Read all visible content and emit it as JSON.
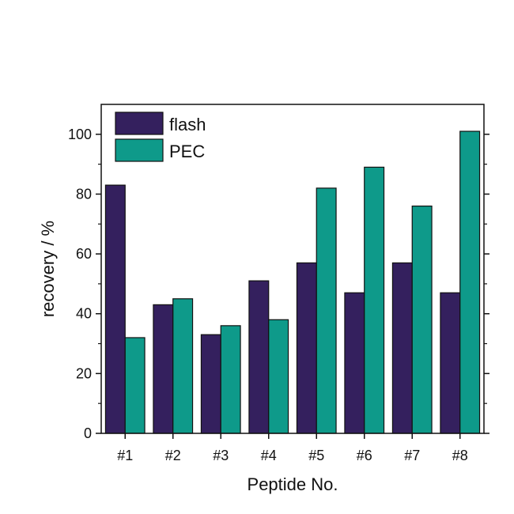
{
  "chart_data": {
    "type": "bar",
    "title": "",
    "xlabel": "Peptide No.",
    "ylabel": "recovery / %",
    "categories": [
      "#1",
      "#2",
      "#3",
      "#4",
      "#5",
      "#6",
      "#7",
      "#8"
    ],
    "series": [
      {
        "name": "flash",
        "color": "#34205e",
        "values": [
          83,
          43,
          33,
          51,
          57,
          47,
          57,
          47
        ]
      },
      {
        "name": "PEC",
        "color": "#0e9a8a",
        "values": [
          32,
          45,
          36,
          38,
          82,
          89,
          76,
          101
        ]
      }
    ],
    "ylim": [
      0,
      110
    ],
    "yticks": [
      0,
      20,
      40,
      60,
      80,
      100
    ],
    "grid": false,
    "legend": "top-left"
  }
}
